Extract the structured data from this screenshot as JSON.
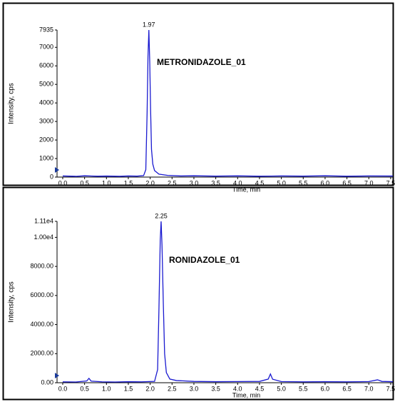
{
  "chart_data": [
    {
      "type": "line",
      "title": "METRONIDAZOLE_01",
      "peak_label": "1.97",
      "x_label": "Time, min",
      "y_label": "Intensity, cps",
      "x": [
        0,
        0.3,
        0.5,
        0.8,
        1.0,
        1.3,
        1.5,
        1.7,
        1.85,
        1.9,
        1.93,
        1.95,
        1.97,
        1.99,
        2.01,
        2.03,
        2.06,
        2.1,
        2.2,
        2.4,
        2.7,
        3.0,
        3.5,
        4.0,
        4.5,
        5.0,
        5.5,
        6.0,
        6.5,
        7.0,
        7.55
      ],
      "series": [
        {
          "name": "METRONIDAZOLE_01",
          "color": "#1a1ad0",
          "values": [
            60,
            40,
            70,
            45,
            55,
            40,
            60,
            50,
            80,
            400,
            3500,
            6500,
            7935,
            6200,
            3600,
            1500,
            700,
            350,
            160,
            90,
            60,
            70,
            50,
            65,
            45,
            60,
            50,
            70,
            45,
            60,
            55
          ]
        }
      ],
      "xlim": [
        -0.13,
        7.55
      ],
      "xticks": [
        {
          "value": 0,
          "label": "0.0"
        },
        0.5,
        {
          "value": 1,
          "label": "1.0"
        },
        1.5,
        {
          "value": 2,
          "label": "2.0"
        },
        2.5,
        {
          "value": 3,
          "label": "3.0"
        },
        3.5,
        {
          "value": 4,
          "label": "4.0"
        },
        4.5,
        {
          "value": 5,
          "label": "5.0"
        },
        5.5,
        {
          "value": 6,
          "label": "6.0"
        },
        6.5,
        {
          "value": 7,
          "label": "7.0"
        },
        7.5
      ],
      "ylim": [
        0,
        7935
      ],
      "yticks": [
        0,
        1000,
        2000,
        3000,
        4000,
        5000,
        6000,
        7000,
        7935
      ]
    },
    {
      "type": "line",
      "title": "RONIDAZOLE_01",
      "peak_label": "2.25",
      "x_label": "Time, min",
      "y_label": "Intensity, cps",
      "x": [
        0,
        0.3,
        0.55,
        0.6,
        0.65,
        0.9,
        1.2,
        1.5,
        1.8,
        2.1,
        2.17,
        2.2,
        2.23,
        2.25,
        2.27,
        2.3,
        2.33,
        2.37,
        2.45,
        2.6,
        3.0,
        3.5,
        4.0,
        4.5,
        4.7,
        4.75,
        4.8,
        5.0,
        5.5,
        6.0,
        6.5,
        7.0,
        7.2,
        7.3,
        7.55
      ],
      "series": [
        {
          "name": "RONIDAZOLE_01",
          "color": "#1a1ad0",
          "values": [
            60,
            50,
            120,
            300,
            110,
            60,
            50,
            70,
            60,
            90,
            900,
            5000,
            9800,
            11100,
            9500,
            5500,
            2000,
            700,
            250,
            150,
            90,
            70,
            80,
            90,
            250,
            600,
            240,
            80,
            60,
            70,
            60,
            80,
            200,
            90,
            70
          ]
        }
      ],
      "xlim": [
        -0.13,
        7.55
      ],
      "xticks": [
        {
          "value": 0,
          "label": "0.0"
        },
        0.5,
        {
          "value": 1,
          "label": "1.0"
        },
        1.5,
        {
          "value": 2,
          "label": "2.0"
        },
        2.5,
        {
          "value": 3,
          "label": "3.0"
        },
        3.5,
        {
          "value": 4,
          "label": "4.0"
        },
        4.5,
        {
          "value": 5,
          "label": "5.0"
        },
        5.5,
        {
          "value": 6,
          "label": "6.0"
        },
        6.5,
        {
          "value": 7,
          "label": "7.0"
        },
        7.5
      ],
      "ylim": [
        0,
        11100
      ],
      "yticks": [
        {
          "value": 0,
          "label": "0.00"
        },
        {
          "value": 2000,
          "label": "2000.00"
        },
        {
          "value": 4000,
          "label": "4000.00"
        },
        {
          "value": 6000,
          "label": "6000.00"
        },
        {
          "value": 8000,
          "label": "8000.00"
        },
        {
          "value": 10000,
          "label": "1.00e4"
        },
        {
          "value": 11100,
          "label": "1.11e4"
        }
      ]
    }
  ]
}
